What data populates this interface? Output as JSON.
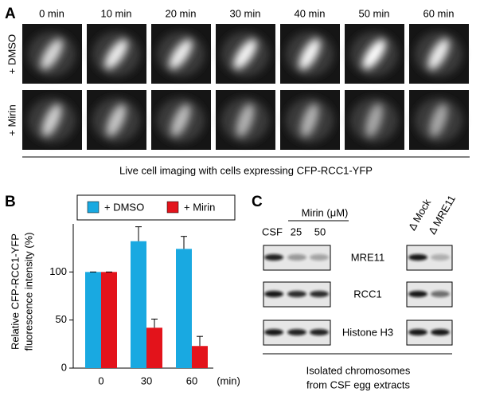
{
  "panel_a": {
    "label": "A",
    "times": [
      "0 min",
      "10 min",
      "20 min",
      "30 min",
      "40 min",
      "50 min",
      "60 min"
    ],
    "rows": [
      "+ DMSO",
      "+ Mirin"
    ],
    "caption": "Live cell imaging with cells expressing CFP-RCC1-YFP"
  },
  "chart_data": {
    "type": "bar",
    "panel_label": "B",
    "y_label": [
      "Relative CFP-RCC1-YFP",
      "fluorescence intensity (%)"
    ],
    "x_unit": "(min)",
    "categories": [
      "0",
      "30",
      "60"
    ],
    "series": [
      {
        "name": "+ DMSO",
        "color": "#19a9e1",
        "values": [
          100,
          132,
          124
        ],
        "errors": [
          0,
          15,
          13
        ]
      },
      {
        "name": "+ Mirin",
        "color": "#e3131b",
        "values": [
          100,
          42,
          23
        ],
        "errors": [
          0,
          9,
          10
        ]
      }
    ],
    "ylim": [
      0,
      150
    ],
    "yticks": [
      0,
      50,
      100
    ],
    "legend": "top"
  },
  "panel_c": {
    "label": "C",
    "treatment": "Mirin (μM)",
    "lanes_left": [
      "CSF",
      "25",
      "50"
    ],
    "lanes_right": [
      "Δ Mock",
      "Δ MRE11"
    ],
    "rows": [
      "MRE11",
      "RCC1",
      "Histone H3"
    ],
    "caption": [
      "Isolated chromosomes",
      "from CSF egg extracts"
    ]
  }
}
